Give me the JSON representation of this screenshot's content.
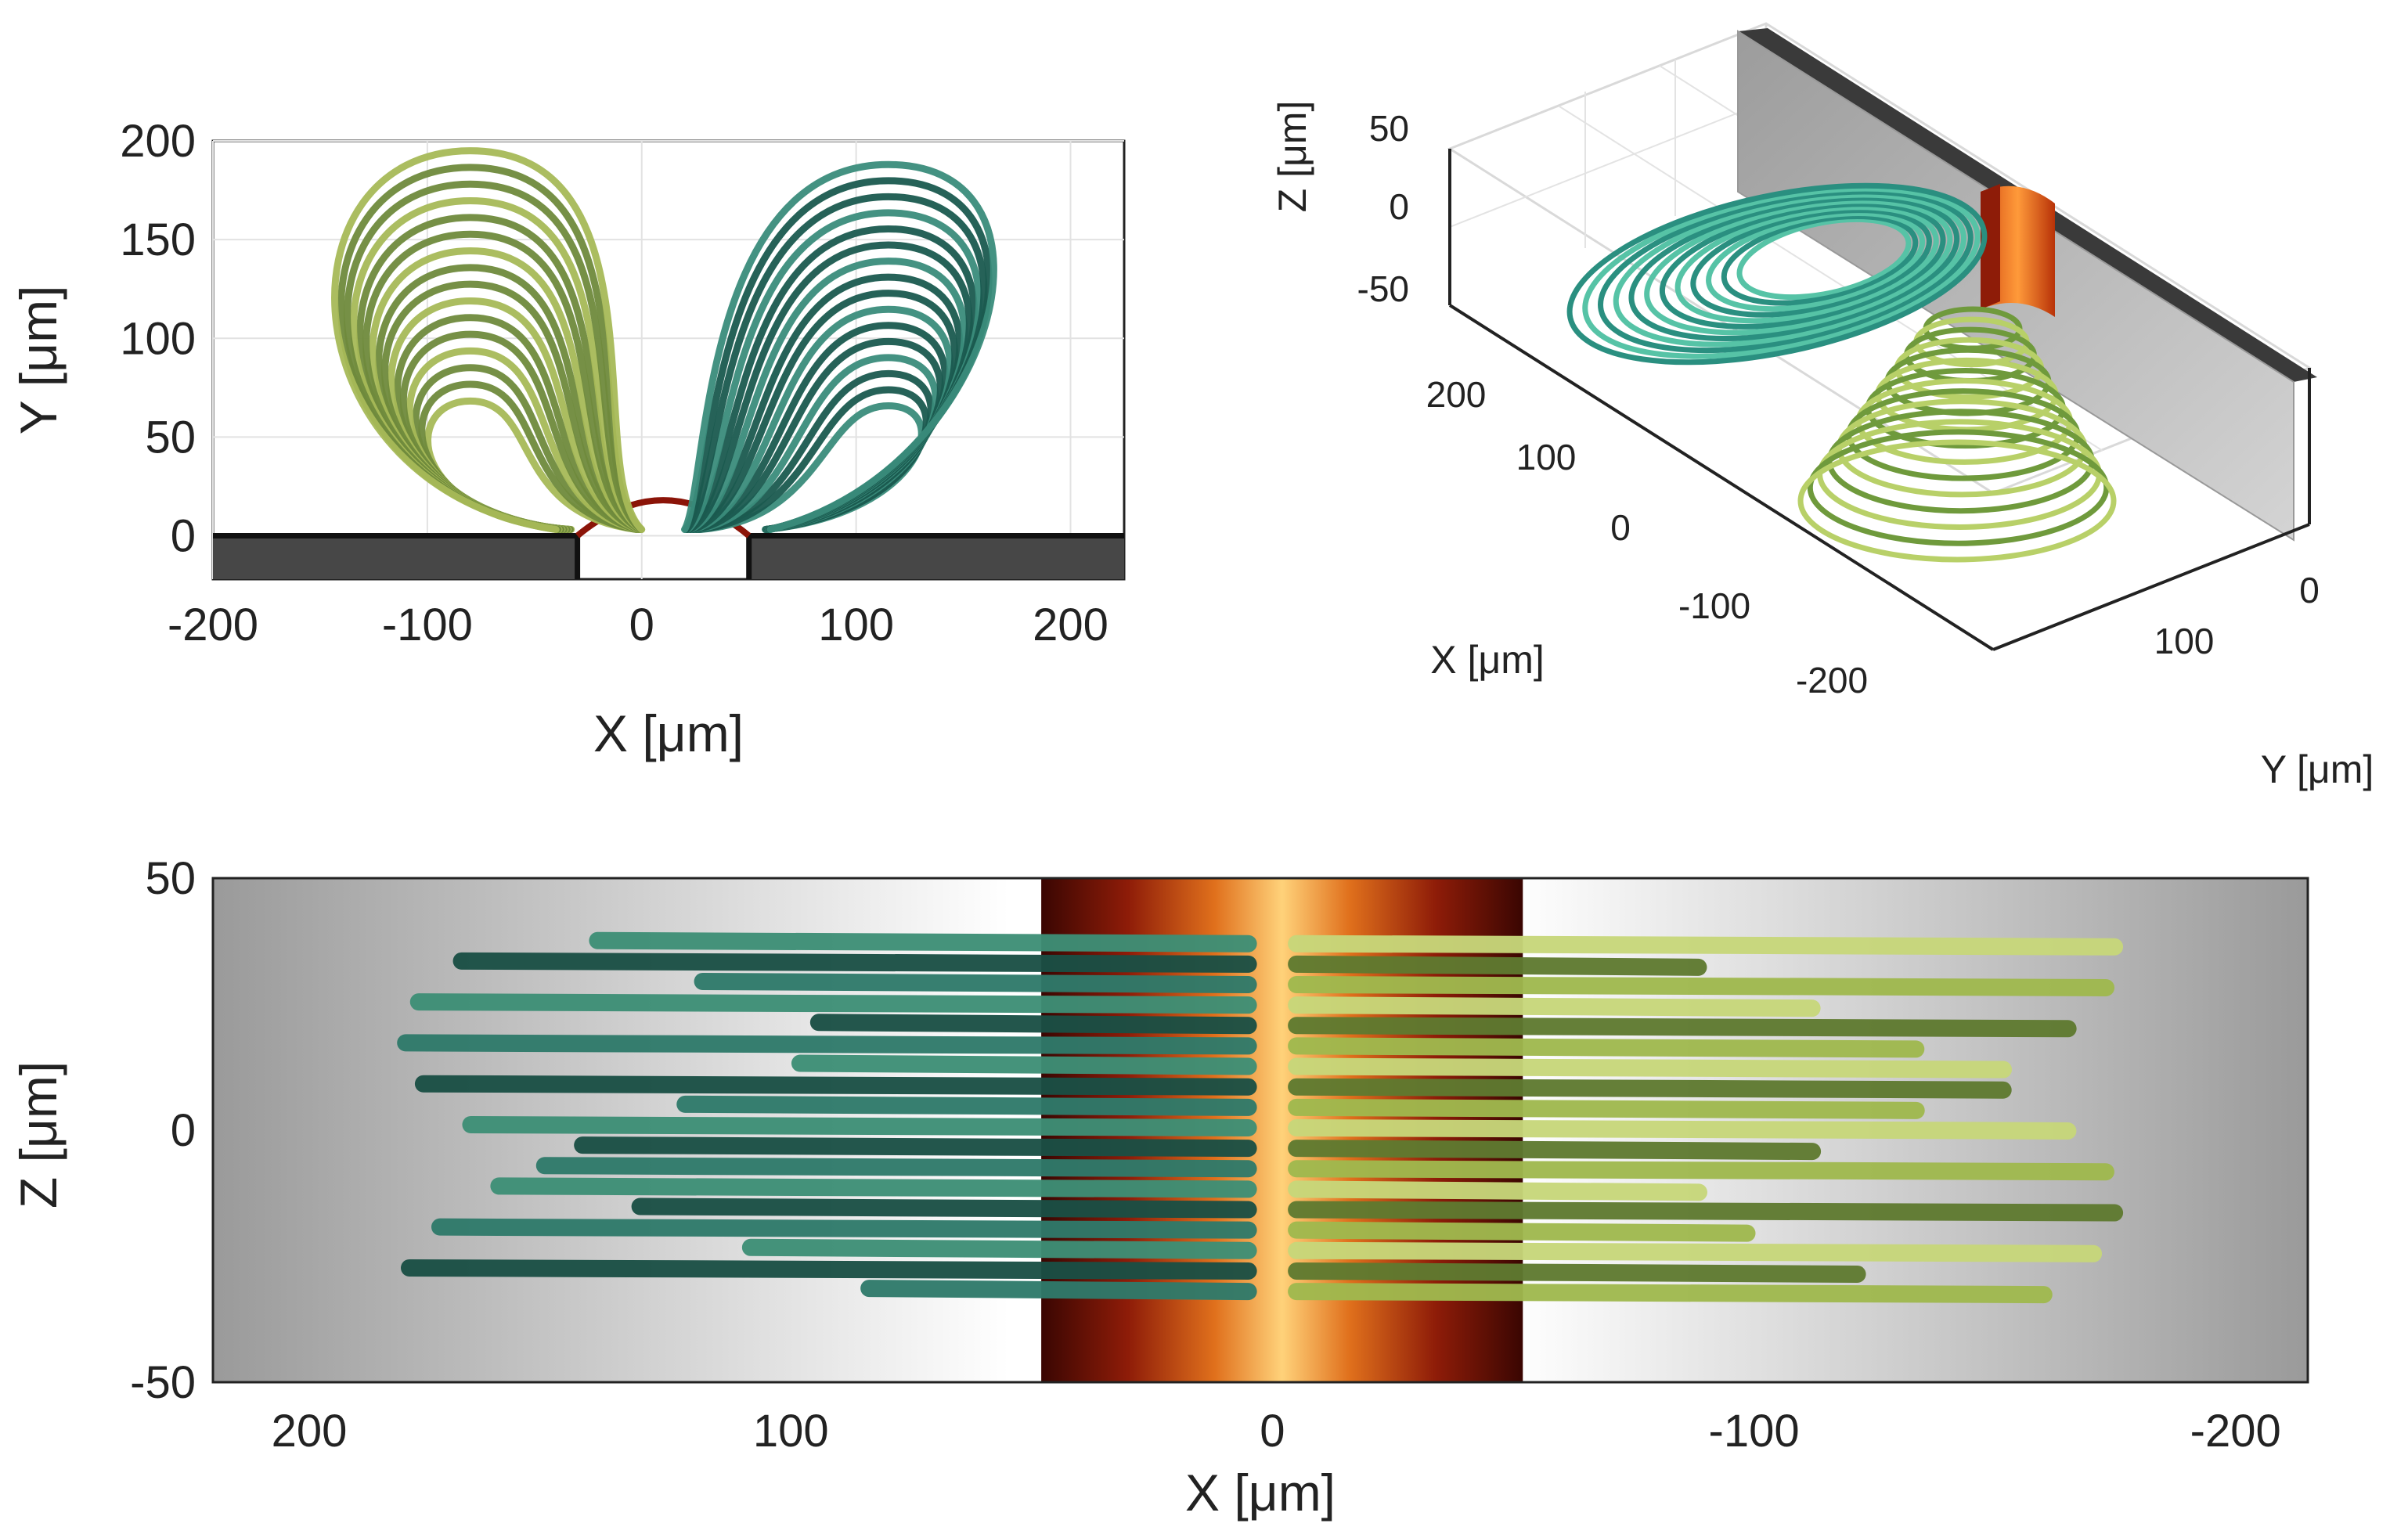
{
  "chart_data": [
    {
      "type": "line",
      "panel": "top-left",
      "projection": "XY",
      "xlabel": "X [μm]",
      "ylabel": "Y [μm]",
      "xticks": [
        -200,
        -100,
        0,
        100,
        200
      ],
      "yticks": [
        0,
        50,
        100,
        150,
        200
      ],
      "xlim": [
        -200,
        225
      ],
      "ylim": [
        -22,
        200
      ],
      "grid": true,
      "wall_y": 0,
      "gap_x": [
        -30,
        50
      ],
      "arc_peak_y": 18,
      "series_colors": [
        "#6f8a3c",
        "#1a5a4f"
      ],
      "series": [
        {
          "lobe": "left",
          "center_x": -80,
          "top_y": 195,
          "base_x": [
            -40,
            0
          ]
        },
        {
          "lobe": "right",
          "center_x": 115,
          "top_y": 188,
          "base_x": [
            20,
            60
          ]
        }
      ]
    },
    {
      "type": "line",
      "panel": "top-right",
      "projection": "3D",
      "xlabel": "X [μm]",
      "ylabel": "Y [μm]",
      "zlabel": "Z [μm]",
      "xticks": [
        200,
        100,
        0,
        -100,
        -200
      ],
      "yticks": [
        0,
        100
      ],
      "zticks": [
        50,
        0,
        -50
      ],
      "grid": true,
      "series_colors": [
        "#2a8f80",
        "#b8d068"
      ]
    },
    {
      "type": "line",
      "panel": "bottom",
      "projection": "XZ",
      "xlabel": "X [μm]",
      "ylabel": "Z [μm]",
      "xticks": [
        200,
        100,
        0,
        -100,
        -200
      ],
      "yticks": [
        50,
        0,
        -50
      ],
      "xlim": [
        220,
        -215
      ],
      "ylim": [
        -50,
        50
      ],
      "x_reversed": true,
      "channel_x": [
        -52,
        48
      ],
      "series_colors": [
        "#1f5e52",
        "#7d9a3e"
      ],
      "series": [
        {
          "lobe": "left",
          "x_extent": [
            5,
            180
          ],
          "z_range": [
            -32,
            37
          ]
        },
        {
          "lobe": "right",
          "x_extent": [
            -5,
            -175
          ],
          "z_range": [
            -32,
            37
          ]
        }
      ]
    }
  ]
}
